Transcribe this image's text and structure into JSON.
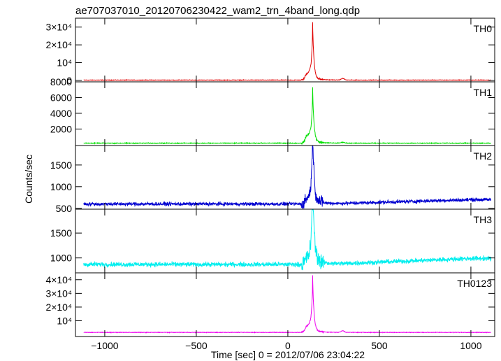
{
  "title": "ae707037010_20120706230422_wam2_trn_4band_long.qdp",
  "ylabel": "Counts/sec",
  "xlabel": "Time [sec] 0 = 2012/07/06 23:04:22",
  "chart_data": {
    "type": "line",
    "x_range": [
      -1160,
      1130
    ],
    "x_ticks": [
      -1000,
      -500,
      0,
      500,
      1000
    ],
    "x_tick_labels": [
      "−1000",
      "−500",
      "0",
      "500",
      "1000"
    ],
    "peak_time": 135,
    "panels": [
      {
        "name": "TH0",
        "color": "#e00000",
        "ylim": [
          -800,
          35000
        ],
        "yticks": [
          0,
          10000,
          20000,
          30000
        ],
        "ytick_labels": [
          "0",
          "10⁴",
          "2×10⁴",
          "3×10⁴"
        ],
        "baseline": 200,
        "noise": 120,
        "peak": 33000,
        "pre_bump": 3500,
        "post_bump": 1200,
        "late_bump": 900
      },
      {
        "name": "TH1",
        "color": "#00e000",
        "ylim": [
          -100,
          8000
        ],
        "yticks": [
          2000,
          4000,
          6000,
          8000
        ],
        "ytick_labels": [
          "2000",
          "4000",
          "6000",
          "8000"
        ],
        "baseline": 200,
        "noise": 40,
        "peak": 7300,
        "pre_bump": 900,
        "post_bump": 300,
        "late_bump": 120
      },
      {
        "name": "TH2",
        "color": "#0000d0",
        "ylim": [
          480,
          1950
        ],
        "yticks": [
          500,
          1000,
          1500
        ],
        "ytick_labels": [
          "500",
          "1000",
          "1500"
        ],
        "baseline": 600,
        "noise": 35,
        "peak": 1850,
        "pre_bump": 120,
        "post_bump": 150,
        "late_bump": 0,
        "drift": 100
      },
      {
        "name": "TH3",
        "color": "#00eeee",
        "ylim": [
          700,
          1980
        ],
        "yticks": [
          1000,
          1500
        ],
        "ytick_labels": [
          "1000",
          "1500"
        ],
        "baseline": 870,
        "noise": 40,
        "peak": 1950,
        "pre_bump": 120,
        "post_bump": 200,
        "late_bump": 0,
        "drift": 120
      },
      {
        "name": "TH0123",
        "color": "#ee00ee",
        "ylim": [
          -1500,
          45000
        ],
        "yticks": [
          10000,
          20000,
          30000,
          40000
        ],
        "ytick_labels": [
          "10⁴",
          "2×10⁴",
          "3×10⁴",
          "4×10⁴"
        ],
        "baseline": 1500,
        "noise": 180,
        "peak": 42000,
        "pre_bump": 4500,
        "post_bump": 1800,
        "late_bump": 1200
      }
    ]
  }
}
